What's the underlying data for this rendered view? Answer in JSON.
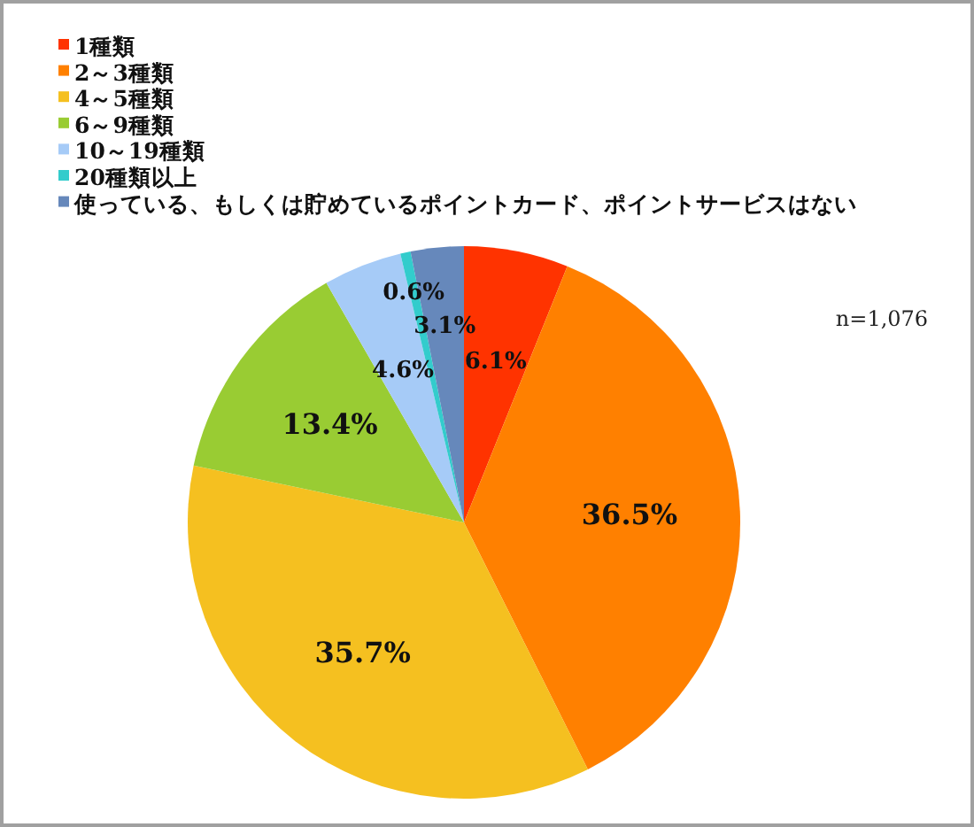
{
  "chart_data": {
    "type": "pie",
    "categories": [
      "1種類",
      "2～3種類",
      "4～5種類",
      "6～9種類",
      "10～19種類",
      "20種類以上",
      "使っている、もしくは貯めているポイントカード、ポイントサービスはない"
    ],
    "values": [
      6.1,
      36.5,
      35.7,
      13.4,
      4.6,
      0.6,
      3.1
    ],
    "colors": [
      "#ff3300",
      "#ff8000",
      "#f5c020",
      "#99cc33",
      "#a6cbf7",
      "#33cccc",
      "#6688bb"
    ],
    "value_labels": [
      "6.1%",
      "36.5%",
      "35.7%",
      "13.4%",
      "4.6%",
      "0.6%",
      "3.1%"
    ],
    "legend": "top left",
    "annotations": [
      "n=1,076"
    ]
  }
}
